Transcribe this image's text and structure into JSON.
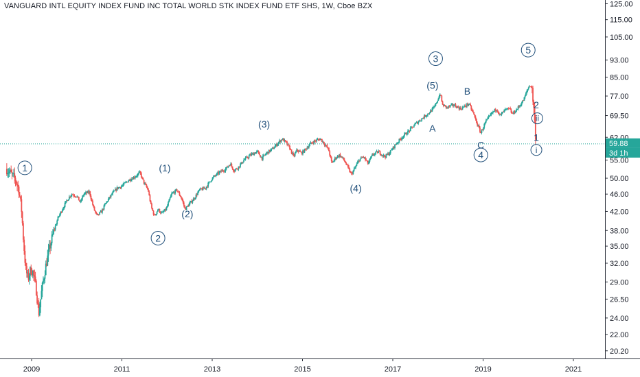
{
  "chart_data": {
    "type": "candlestick",
    "title": "VANGUARD INTL EQUITY INDEX FUND INC TOTAL WORLD STK INDEX FUND ETF SHS, 1W, Cboe BZX",
    "y_scale": "log",
    "ylim": [
      19.4,
      127.5
    ],
    "y_ticks": [
      "20.20",
      "22.00",
      "24.00",
      "26.50",
      "29.00",
      "32.00",
      "35.00",
      "38.00",
      "42.00",
      "46.00",
      "50.00",
      "55.00",
      "62.00",
      "69.50",
      "77.00",
      "85.00",
      "93.00",
      "105.00",
      "115.00",
      "125.00"
    ],
    "xlim": [
      2008.3,
      2021.7
    ],
    "x_ticks": [
      "2009",
      "2011",
      "2013",
      "2015",
      "2017",
      "2019",
      "2021"
    ],
    "grid": false,
    "last_price": "59.88",
    "countdown": "3d 1h",
    "price_path": [
      [
        2008.45,
        52.5
      ],
      [
        2008.55,
        51.0
      ],
      [
        2008.65,
        49.5
      ],
      [
        2008.72,
        47.0
      ],
      [
        2008.78,
        42.0
      ],
      [
        2008.82,
        36.0
      ],
      [
        2008.87,
        31.0
      ],
      [
        2008.92,
        29.5
      ],
      [
        2008.98,
        31.0
      ],
      [
        2009.03,
        30.5
      ],
      [
        2009.1,
        28.0
      ],
      [
        2009.16,
        24.6
      ],
      [
        2009.22,
        27.5
      ],
      [
        2009.3,
        31.0
      ],
      [
        2009.38,
        34.0
      ],
      [
        2009.48,
        37.5
      ],
      [
        2009.58,
        40.5
      ],
      [
        2009.68,
        42.5
      ],
      [
        2009.78,
        44.5
      ],
      [
        2009.88,
        46.0
      ],
      [
        2010.0,
        45.5
      ],
      [
        2010.08,
        44.0
      ],
      [
        2010.15,
        46.0
      ],
      [
        2010.28,
        46.5
      ],
      [
        2010.38,
        42.5
      ],
      [
        2010.45,
        41.0
      ],
      [
        2010.55,
        42.0
      ],
      [
        2010.65,
        44.0
      ],
      [
        2010.78,
        46.0
      ],
      [
        2010.9,
        47.5
      ],
      [
        2011.0,
        48.0
      ],
      [
        2011.15,
        49.5
      ],
      [
        2011.3,
        50.5
      ],
      [
        2011.4,
        51.5
      ],
      [
        2011.48,
        49.0
      ],
      [
        2011.58,
        47.0
      ],
      [
        2011.65,
        43.0
      ],
      [
        2011.72,
        41.0
      ],
      [
        2011.8,
        42.5
      ],
      [
        2011.88,
        41.5
      ],
      [
        2011.98,
        42.5
      ],
      [
        2012.1,
        46.0
      ],
      [
        2012.22,
        47.0
      ],
      [
        2012.32,
        45.0
      ],
      [
        2012.4,
        42.5
      ],
      [
        2012.48,
        43.5
      ],
      [
        2012.6,
        45.0
      ],
      [
        2012.72,
        47.0
      ],
      [
        2012.85,
        47.5
      ],
      [
        2013.0,
        50.0
      ],
      [
        2013.15,
        51.5
      ],
      [
        2013.3,
        52.5
      ],
      [
        2013.4,
        54.0
      ],
      [
        2013.48,
        52.0
      ],
      [
        2013.58,
        53.0
      ],
      [
        2013.7,
        55.0
      ],
      [
        2013.85,
        56.5
      ],
      [
        2014.0,
        57.5
      ],
      [
        2014.1,
        55.5
      ],
      [
        2014.2,
        57.0
      ],
      [
        2014.35,
        58.5
      ],
      [
        2014.48,
        60.5
      ],
      [
        2014.55,
        61.5
      ],
      [
        2014.62,
        60.5
      ],
      [
        2014.72,
        58.5
      ],
      [
        2014.8,
        56.0
      ],
      [
        2014.88,
        58.0
      ],
      [
        2014.98,
        57.0
      ],
      [
        2015.05,
        58.0
      ],
      [
        2015.18,
        60.0
      ],
      [
        2015.3,
        61.0
      ],
      [
        2015.4,
        61.5
      ],
      [
        2015.48,
        60.0
      ],
      [
        2015.58,
        58.0
      ],
      [
        2015.65,
        54.0
      ],
      [
        2015.72,
        55.5
      ],
      [
        2015.82,
        56.5
      ],
      [
        2015.92,
        55.0
      ],
      [
        2016.0,
        53.0
      ],
      [
        2016.08,
        51.0
      ],
      [
        2016.15,
        52.5
      ],
      [
        2016.25,
        55.0
      ],
      [
        2016.35,
        56.0
      ],
      [
        2016.45,
        54.0
      ],
      [
        2016.55,
        56.5
      ],
      [
        2016.68,
        57.5
      ],
      [
        2016.82,
        56.0
      ],
      [
        2016.92,
        57.0
      ],
      [
        2017.05,
        59.5
      ],
      [
        2017.2,
        62.0
      ],
      [
        2017.35,
        64.0
      ],
      [
        2017.5,
        66.5
      ],
      [
        2017.65,
        68.5
      ],
      [
        2017.8,
        70.5
      ],
      [
        2017.92,
        72.5
      ],
      [
        2018.05,
        78.0
      ],
      [
        2018.1,
        73.5
      ],
      [
        2018.2,
        72.5
      ],
      [
        2018.35,
        73.5
      ],
      [
        2018.5,
        72.0
      ],
      [
        2018.6,
        73.0
      ],
      [
        2018.68,
        74.0
      ],
      [
        2018.78,
        70.5
      ],
      [
        2018.88,
        66.0
      ],
      [
        2018.95,
        63.5
      ],
      [
        2019.05,
        67.0
      ],
      [
        2019.2,
        70.5
      ],
      [
        2019.3,
        72.0
      ],
      [
        2019.38,
        69.5
      ],
      [
        2019.48,
        71.5
      ],
      [
        2019.58,
        72.0
      ],
      [
        2019.65,
        70.0
      ],
      [
        2019.78,
        72.5
      ],
      [
        2019.9,
        75.5
      ],
      [
        2020.0,
        80.5
      ],
      [
        2020.05,
        81.5
      ],
      [
        2020.08,
        80.0
      ],
      [
        2020.12,
        73.0
      ],
      [
        2020.15,
        65.0
      ],
      [
        2020.18,
        59.9
      ]
    ],
    "annotations": [
      {
        "text": "1",
        "x": 2008.85,
        "y": 52.8,
        "circled": true
      },
      {
        "text": "2",
        "x": 2011.8,
        "y": 36.5,
        "circled": true
      },
      {
        "text": "3",
        "x": 2017.95,
        "y": 93.7,
        "circled": true
      },
      {
        "text": "4",
        "x": 2018.95,
        "y": 56.5,
        "circled": true
      },
      {
        "text": "5",
        "x": 2020.0,
        "y": 98.0,
        "circled": true
      },
      {
        "text": "(1)",
        "x": 2011.95,
        "y": 52.8,
        "circled": false
      },
      {
        "text": "(2)",
        "x": 2012.45,
        "y": 41.5,
        "circled": false
      },
      {
        "text": "(3)",
        "x": 2014.15,
        "y": 66.5,
        "circled": false
      },
      {
        "text": "(4)",
        "x": 2016.18,
        "y": 47.5,
        "circled": false
      },
      {
        "text": "(5)",
        "x": 2017.88,
        "y": 81.5,
        "circled": false
      },
      {
        "text": "A",
        "x": 2017.88,
        "y": 65.0,
        "circled": false
      },
      {
        "text": "B",
        "x": 2018.65,
        "y": 79.0,
        "circled": false
      },
      {
        "text": "C",
        "x": 2018.95,
        "y": 59.5,
        "circled": false
      },
      {
        "text": "2",
        "x": 2020.18,
        "y": 73.5,
        "circled": false
      },
      {
        "text": "ii",
        "x": 2020.2,
        "y": 68.5,
        "circled": true
      },
      {
        "text": "1",
        "x": 2020.18,
        "y": 62.0,
        "circled": false
      },
      {
        "text": "i",
        "x": 2020.18,
        "y": 58.0,
        "circled": true
      }
    ]
  }
}
